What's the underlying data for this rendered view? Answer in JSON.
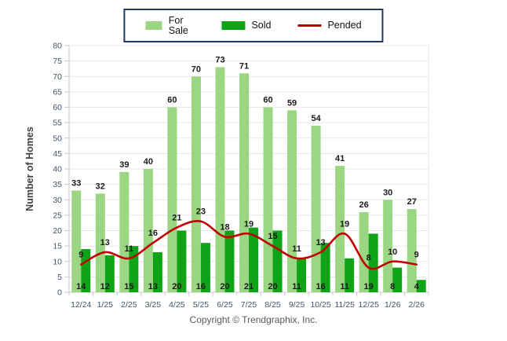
{
  "legend": {
    "items": [
      {
        "label": "For Sale",
        "color": "#9BD682",
        "swatch": "bar"
      },
      {
        "label": "Sold",
        "color": "#0FA317",
        "swatch": "bar"
      },
      {
        "label": "Pended",
        "color": "#C00000",
        "swatch": "line"
      }
    ],
    "border_color": "#1F3864"
  },
  "footer": {
    "copyright": "Copyright © Trendgraphix, Inc."
  },
  "chart_data": {
    "type": "bar",
    "title": "",
    "xlabel": "",
    "ylabel": "Number of Homes",
    "ylim": [
      0,
      80
    ],
    "ytick_step": 5,
    "grid": true,
    "legend_position": "top-center",
    "categories": [
      "12/24",
      "1/25",
      "2/25",
      "3/25",
      "4/25",
      "5/25",
      "6/25",
      "7/25",
      "8/25",
      "9/25",
      "10/25",
      "11/25",
      "12/25",
      "1/26",
      "2/26"
    ],
    "series": [
      {
        "name": "For Sale",
        "type": "bar",
        "color": "#9BD682",
        "values": [
          33,
          32,
          39,
          40,
          60,
          70,
          73,
          71,
          60,
          59,
          54,
          41,
          26,
          30,
          27
        ]
      },
      {
        "name": "Sold",
        "type": "bar",
        "color": "#0FA317",
        "values": [
          14,
          12,
          15,
          13,
          20,
          16,
          20,
          21,
          20,
          11,
          16,
          11,
          19,
          8,
          4
        ]
      },
      {
        "name": "Pended",
        "type": "line",
        "color": "#C00000",
        "values": [
          9,
          13,
          11,
          16,
          21,
          23,
          18,
          19,
          15,
          11,
          13,
          19,
          8,
          10,
          9
        ]
      }
    ],
    "colors": {
      "grid": "#E7E7E7",
      "axis": "#C9C9C9",
      "tick_label": "#44546A",
      "value_label": "#1A1A1A",
      "axis_title": "#3F3F3F"
    }
  }
}
